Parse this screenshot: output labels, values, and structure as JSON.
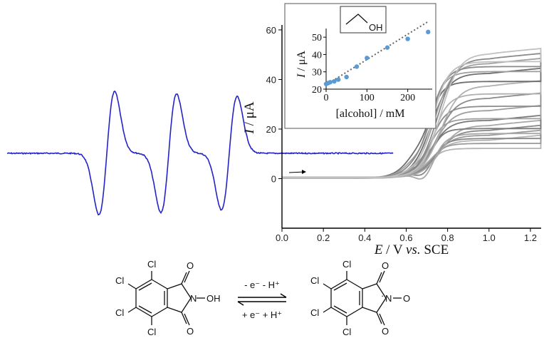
{
  "chart_data": [
    {
      "type": "line",
      "name": "cyclic voltammograms",
      "xlabel_var": "E",
      "xlabel_unit": " / V ",
      "xlabel_vs": "vs.",
      "xlabel_ref": " SCE",
      "ylabel_var": "I",
      "ylabel_unit": " / μA",
      "xlim": [
        0.0,
        1.25
      ],
      "ylim": [
        -20,
        62
      ],
      "xticks": [
        "0.0",
        "0.2",
        "0.4",
        "0.6",
        "0.8",
        "1.0",
        "1.2"
      ],
      "yticks": [
        "0",
        "20",
        "40",
        "60"
      ],
      "sweep_arrow": "→",
      "series_count": 12,
      "plateau_currents": [
        15,
        17,
        19,
        21,
        23,
        27,
        32,
        37,
        42,
        46,
        48,
        50
      ]
    },
    {
      "type": "scatter",
      "name": "inset",
      "xlabel": "[alcohol] / mM",
      "ylabel_var": "I",
      "ylabel_unit": " / μA",
      "xlim": [
        0,
        260
      ],
      "ylim": [
        20,
        55
      ],
      "xticks": [
        "0",
        "100",
        "200"
      ],
      "yticks": [
        "20",
        "30",
        "40",
        "50"
      ],
      "molecule_label": "OH",
      "points": [
        {
          "x": 0,
          "y": 23
        },
        {
          "x": 5,
          "y": 23.5
        },
        {
          "x": 10,
          "y": 24
        },
        {
          "x": 20,
          "y": 24.5
        },
        {
          "x": 30,
          "y": 25.5
        },
        {
          "x": 50,
          "y": 27
        },
        {
          "x": 75,
          "y": 33
        },
        {
          "x": 100,
          "y": 38
        },
        {
          "x": 150,
          "y": 44
        },
        {
          "x": 200,
          "y": 49
        },
        {
          "x": 250,
          "y": 53
        }
      ],
      "fit": {
        "x": [
          0,
          250
        ],
        "y": [
          22.5,
          59
        ]
      },
      "colors": {
        "points": "#5b9bd5",
        "fit": "#666666"
      }
    },
    {
      "type": "line",
      "name": "EPR spectrum",
      "color": "#2323c8",
      "lines": 3
    }
  ],
  "scheme": {
    "reactant_atoms": [
      "Cl",
      "Cl",
      "Cl",
      "Cl",
      "O",
      "O",
      "N",
      "OH"
    ],
    "reactant_bond_label": "N–OH",
    "forward": "- e⁻  - H⁺",
    "reverse": "+ e⁻  + H⁺",
    "product_atoms": [
      "Cl",
      "Cl",
      "Cl",
      "Cl",
      "O",
      "O",
      "N",
      "O"
    ],
    "radical_dot": "·"
  }
}
